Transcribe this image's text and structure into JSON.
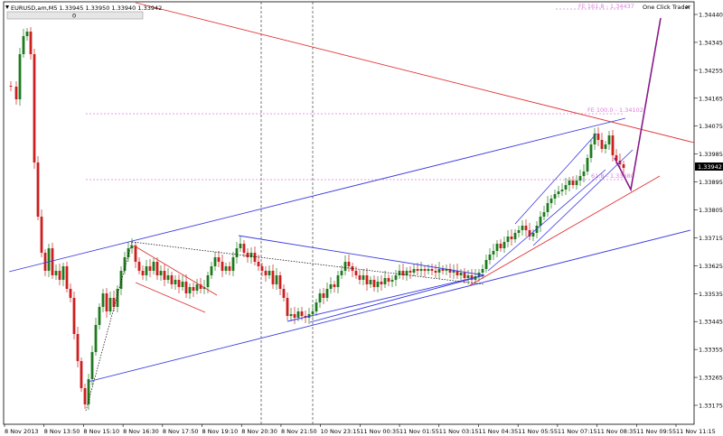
{
  "header": {
    "symbol_line": "EURUSD,am,M5  1.33945 1.33950 1.33940 1.33942",
    "panel_label": "0"
  },
  "one_click": {
    "label": "One Click Trader",
    "close_glyph": "✕"
  },
  "price_axis": {
    "ticks": [
      "1.34440",
      "1.34345",
      "1.34255",
      "1.34165",
      "1.34075",
      "1.33985",
      "1.33895",
      "1.33805",
      "1.33715",
      "1.33625",
      "1.33535",
      "1.33445",
      "1.33355",
      "1.33265",
      "1.33175"
    ],
    "current_price": "1.33942"
  },
  "time_axis": {
    "labels": [
      "8 Nov 2013",
      "8 Nov 13:50",
      "8 Nov 15:10",
      "8 Nov 16:30",
      "8 Nov 17:50",
      "8 Nov 19:10",
      "8 Nov 20:30",
      "8 Nov 21:50",
      "10 Nov 23:15",
      "11 Nov 00:35",
      "11 Nov 01:55",
      "11 Nov 03:15",
      "11 Nov 04:35",
      "11 Nov 05:55",
      "11 Nov 07:15",
      "11 Nov 08:35",
      "11 Nov 09:55",
      "11 Nov 11:15"
    ]
  },
  "fibo": {
    "fe_1618": "FE 161.8 - 1.34437",
    "fe_100": "FE 100.0 - 1.34102",
    "fe_618": "61.8 - 1.33880"
  },
  "colors": {
    "bull": "#1f7a1f",
    "bear": "#cc1f1f",
    "channel": "#3a3ae0",
    "trendline": "#e03030",
    "projection": "#8a1a8a",
    "fibo": "#e07ae0",
    "pitchfork": "#000000"
  }
}
